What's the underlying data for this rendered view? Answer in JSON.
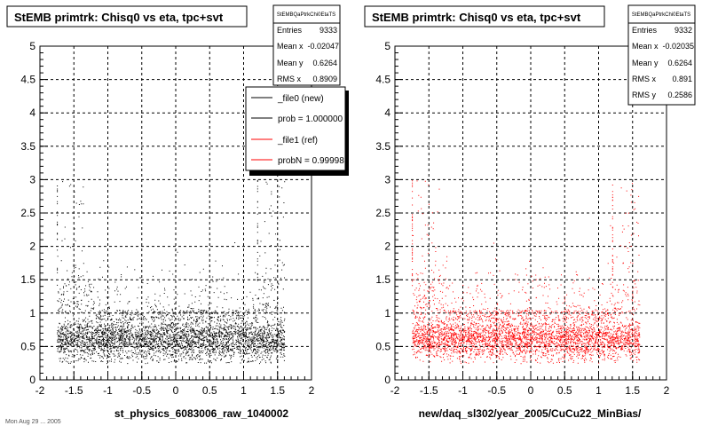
{
  "panels": [
    {
      "title": "StEMB primtrk: Chisq0 vs eta, tpc+svt",
      "xlabel": "st_physics_6083006_raw_1040002",
      "stats": {
        "name": "StEMBQaPtrkChi0EtaTS",
        "rows": [
          {
            "label": "Entries",
            "value": "9333"
          },
          {
            "label": "Mean x",
            "value": "-0.02047"
          },
          {
            "label": "Mean y",
            "value": "0.6264"
          },
          {
            "label": "RMS x",
            "value": "0.8909"
          }
        ]
      },
      "legend": [
        {
          "label": "_file0 (new)",
          "color": "#000000"
        },
        {
          "label": "prob = 1.000000",
          "color": "#000000"
        },
        {
          "label": "_file1 (ref)",
          "color": "#ff0000"
        },
        {
          "label": "probN = 0.99998",
          "color": "#ff0000"
        }
      ]
    },
    {
      "title": "StEMB primtrk: Chisq0 vs eta, tpc+svt",
      "xlabel": "new/daq_sl302/year_2005/CuCu22_MinBias/",
      "stats": {
        "name": "StEMBQaPtrkChi0EtaTS",
        "rows": [
          {
            "label": "Entries",
            "value": "9332"
          },
          {
            "label": "Mean x",
            "value": "-0.02035"
          },
          {
            "label": "Mean y",
            "value": "0.6264"
          },
          {
            "label": "RMS x",
            "value": "0.891"
          },
          {
            "label": "RMS y",
            "value": "0.2586"
          }
        ]
      }
    }
  ],
  "footer_text": "Mon Aug 29 ... 2005",
  "chart_data": [
    {
      "type": "scatter",
      "title": "StEMB primtrk: Chisq0 vs eta, tpc+svt",
      "xlabel": "st_physics_6083006_raw_1040002",
      "ylabel": "",
      "xlim": [
        -2,
        2
      ],
      "ylim": [
        0,
        5
      ],
      "xticks": [
        "-2",
        "-1.5",
        "-1",
        "-0.5",
        "0",
        "0.5",
        "1",
        "1.5",
        "2"
      ],
      "yticks": [
        "0",
        "0.5",
        "1",
        "1.5",
        "2",
        "2.5",
        "3",
        "3.5",
        "4",
        "4.5",
        "5"
      ],
      "grid": true,
      "series": [
        {
          "name": "_file0 (new)",
          "color": "#000000",
          "entries": 9333,
          "mean_x": -0.02047,
          "mean_y": 0.6264,
          "rms_x": 0.8909,
          "x_range": [
            -1.75,
            1.6
          ],
          "dense_y_range": [
            0.3,
            1.0
          ]
        }
      ]
    },
    {
      "type": "scatter",
      "title": "StEMB primtrk: Chisq0 vs eta, tpc+svt",
      "xlabel": "new/daq_sl302/year_2005/CuCu22_MinBias/",
      "ylabel": "",
      "xlim": [
        -2,
        2
      ],
      "ylim": [
        0,
        5
      ],
      "xticks": [
        "-2",
        "-1.5",
        "-1",
        "-0.5",
        "0",
        "0.5",
        "1",
        "1.5",
        "2"
      ],
      "yticks": [
        "0",
        "0.5",
        "1",
        "1.5",
        "2",
        "2.5",
        "3",
        "3.5",
        "4",
        "4.5",
        "5"
      ],
      "grid": true,
      "series": [
        {
          "name": "_file1 (ref)",
          "color": "#ff0000",
          "entries": 9332,
          "mean_x": -0.02035,
          "mean_y": 0.6264,
          "rms_x": 0.891,
          "rms_y": 0.2586,
          "x_range": [
            -1.75,
            1.6
          ],
          "dense_y_range": [
            0.3,
            1.0
          ]
        }
      ]
    }
  ]
}
